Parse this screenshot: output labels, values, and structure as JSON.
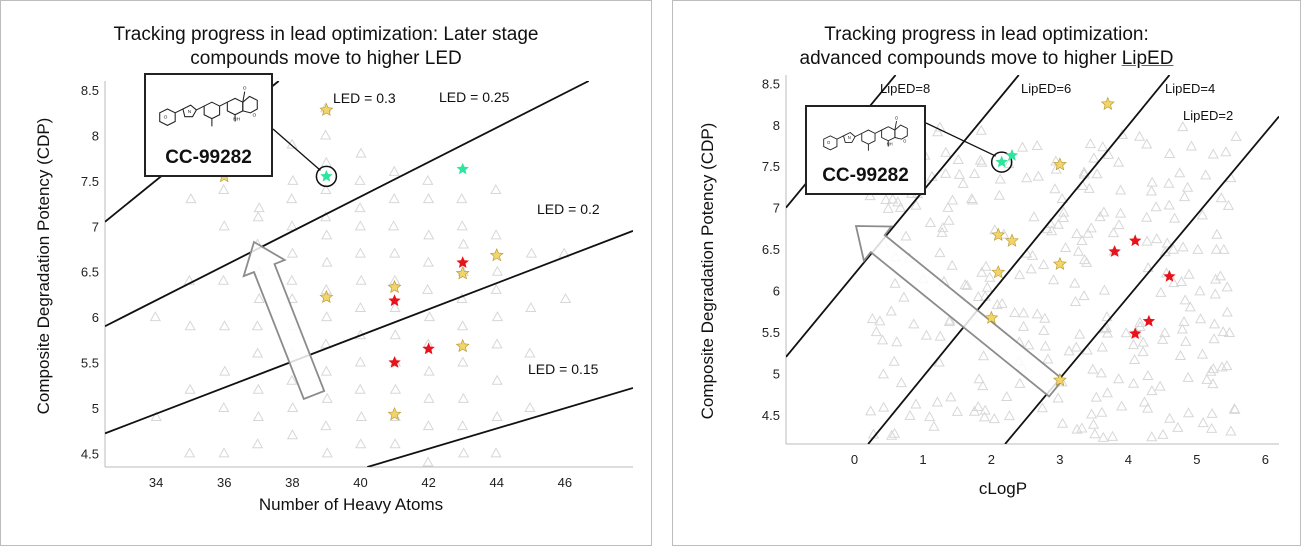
{
  "colors": {
    "background_marker": "#d7d7d7",
    "advanced": "#f2d46a",
    "highlight": "#2ee59d",
    "red": "#e8121a",
    "line": "#111111",
    "arrow": "#8c8c8c"
  },
  "chart_data": [
    {
      "type": "scatter",
      "title_lines": [
        "Tracking progress in lead optimization: Later stage",
        "compounds move to higher LED"
      ],
      "xlabel": "Number of Heavy Atoms",
      "ylabel": "Composite Degradation Potency (CDP)",
      "xlim": [
        32.5,
        48
      ],
      "ylim": [
        4.35,
        8.6
      ],
      "x_ticks": [
        "34",
        "36",
        "38",
        "40",
        "42",
        "44",
        "46"
      ],
      "y_ticks": [
        "8.5",
        "8",
        "7.5",
        "7",
        "6.5",
        "6",
        "5.5",
        "5",
        "4.5"
      ],
      "grid": false,
      "reference_lines": [
        {
          "label": "LED = 0.3",
          "points": [
            [
              32.5,
              7.05
            ],
            [
              37.6,
              8.6
            ]
          ]
        },
        {
          "label": "LED = 0.25",
          "points": [
            [
              32.5,
              5.9
            ],
            [
              46.7,
              8.6
            ]
          ]
        },
        {
          "label": "LED = 0.2",
          "points": [
            [
              32.5,
              4.72
            ],
            [
              48,
              6.95
            ]
          ]
        },
        {
          "label": "LED = 0.15",
          "points": [
            [
              40.2,
              4.35
            ],
            [
              48,
              5.22
            ]
          ]
        }
      ],
      "background_series": {
        "marker": "triangle",
        "columns": [
          {
            "x": 34,
            "y": [
              4.2,
              4.9,
              6.0
            ]
          },
          {
            "x": 35,
            "y": [
              4.5,
              5.2,
              5.9,
              6.4,
              7.3
            ]
          },
          {
            "x": 36,
            "y": [
              4.0,
              4.5,
              5.0,
              5.4,
              5.9,
              6.4,
              7.0,
              7.4
            ]
          },
          {
            "x": 37,
            "y": [
              4.2,
              4.6,
              4.9,
              5.2,
              5.6,
              5.9,
              6.2,
              6.5,
              6.8,
              7.1,
              7.2
            ]
          },
          {
            "x": 38,
            "y": [
              4.0,
              4.3,
              4.7,
              5.0,
              5.3,
              5.6,
              5.9,
              6.2,
              6.4,
              6.7,
              7.0,
              7.3,
              7.5,
              7.9
            ]
          },
          {
            "x": 39,
            "y": [
              3.9,
              4.2,
              4.5,
              4.8,
              5.1,
              5.4,
              5.7,
              6.0,
              6.3,
              6.6,
              6.9,
              7.1,
              7.4,
              7.7,
              8.0,
              8.3
            ]
          },
          {
            "x": 40,
            "y": [
              4.0,
              4.3,
              4.6,
              4.9,
              5.2,
              5.5,
              5.8,
              6.1,
              6.4,
              6.7,
              7.0,
              7.2,
              7.5,
              7.8
            ]
          },
          {
            "x": 41,
            "y": [
              4.0,
              4.3,
              4.6,
              4.9,
              5.2,
              5.5,
              5.8,
              6.1,
              6.4,
              6.7,
              7.0,
              7.3,
              7.6
            ]
          },
          {
            "x": 42,
            "y": [
              4.4,
              4.8,
              5.1,
              5.4,
              5.7,
              6.0,
              6.3,
              6.6,
              6.9,
              7.3,
              7.5
            ]
          },
          {
            "x": 43,
            "y": [
              4.5,
              4.8,
              5.1,
              5.5,
              5.9,
              6.2,
              6.5,
              6.8,
              7.0,
              7.3
            ]
          },
          {
            "x": 44,
            "y": [
              4.5,
              4.9,
              5.3,
              5.7,
              6.0,
              6.3,
              6.5,
              6.9,
              7.4
            ]
          },
          {
            "x": 45,
            "y": [
              5.0,
              5.6,
              6.1,
              6.7
            ]
          },
          {
            "x": 46,
            "y": [
              6.2,
              6.7
            ]
          }
        ]
      },
      "highlighted_points": [
        {
          "category": "advanced",
          "x": 36,
          "y": 7.55
        },
        {
          "category": "advanced",
          "x": 39,
          "y": 8.28
        },
        {
          "category": "advanced",
          "x": 39,
          "y": 6.22
        },
        {
          "category": "advanced",
          "x": 41,
          "y": 6.33
        },
        {
          "category": "advanced",
          "x": 41,
          "y": 4.93
        },
        {
          "category": "advanced",
          "x": 43,
          "y": 5.68
        },
        {
          "category": "advanced",
          "x": 44,
          "y": 6.68
        },
        {
          "category": "advanced",
          "x": 43,
          "y": 6.48
        },
        {
          "category": "highlight",
          "x": 39,
          "y": 7.55
        },
        {
          "category": "highlight",
          "x": 43,
          "y": 7.63
        },
        {
          "category": "red",
          "x": 43,
          "y": 6.6
        },
        {
          "category": "red",
          "x": 41,
          "y": 6.18
        },
        {
          "category": "red",
          "x": 41,
          "y": 5.5
        },
        {
          "category": "red",
          "x": 42,
          "y": 5.65
        }
      ],
      "compound": {
        "name": "CC-99282",
        "x": 39,
        "y": 7.55
      }
    },
    {
      "type": "scatter",
      "title_lines": [
        "Tracking progress in lead optimization:",
        "advanced compounds move to higher LipED"
      ],
      "xlabel": "cLogP",
      "ylabel": "Composite Degradation Potency (CDP)",
      "xlim": [
        -1,
        6.2
      ],
      "ylim": [
        4.15,
        8.6
      ],
      "x_ticks": [
        "0",
        "1",
        "2",
        "3",
        "4",
        "5",
        "6"
      ],
      "y_ticks": [
        "8.5",
        "8",
        "7.5",
        "7",
        "6.5",
        "6",
        "5.5",
        "5",
        "4.5"
      ],
      "grid": false,
      "reference_lines": [
        {
          "label": "LipED=8",
          "points": [
            [
              -1,
              7.0
            ],
            [
              0.6,
              8.6
            ]
          ]
        },
        {
          "label": "LipED=6",
          "points": [
            [
              -1,
              5.2
            ],
            [
              2.4,
              8.6
            ]
          ]
        },
        {
          "label": "LipED=4",
          "points": [
            [
              0.2,
              4.15
            ],
            [
              4.6,
              8.6
            ]
          ]
        },
        {
          "label": "LipED=2",
          "points": [
            [
              2.2,
              4.15
            ],
            [
              6.2,
              8.1
            ]
          ]
        }
      ],
      "background_series": {
        "marker": "triangle",
        "count": 280
      },
      "highlighted_points": [
        {
          "category": "advanced",
          "x": 3.7,
          "y": 8.25
        },
        {
          "category": "advanced",
          "x": 3.0,
          "y": 7.52
        },
        {
          "category": "advanced",
          "x": 2.1,
          "y": 6.67
        },
        {
          "category": "advanced",
          "x": 2.3,
          "y": 6.6
        },
        {
          "category": "advanced",
          "x": 3.0,
          "y": 6.32
        },
        {
          "category": "advanced",
          "x": 2.1,
          "y": 6.22
        },
        {
          "category": "advanced",
          "x": 2.0,
          "y": 5.67
        },
        {
          "category": "advanced",
          "x": 3.0,
          "y": 4.92
        },
        {
          "category": "highlight",
          "x": 2.15,
          "y": 7.55
        },
        {
          "category": "highlight",
          "x": 2.3,
          "y": 7.63
        },
        {
          "category": "red",
          "x": 3.8,
          "y": 6.47
        },
        {
          "category": "red",
          "x": 4.1,
          "y": 6.6
        },
        {
          "category": "red",
          "x": 4.6,
          "y": 6.17
        },
        {
          "category": "red",
          "x": 4.3,
          "y": 5.63
        },
        {
          "category": "red",
          "x": 4.1,
          "y": 5.48
        }
      ],
      "compound": {
        "name": "CC-99282",
        "x": 2.15,
        "y": 7.55
      }
    }
  ]
}
